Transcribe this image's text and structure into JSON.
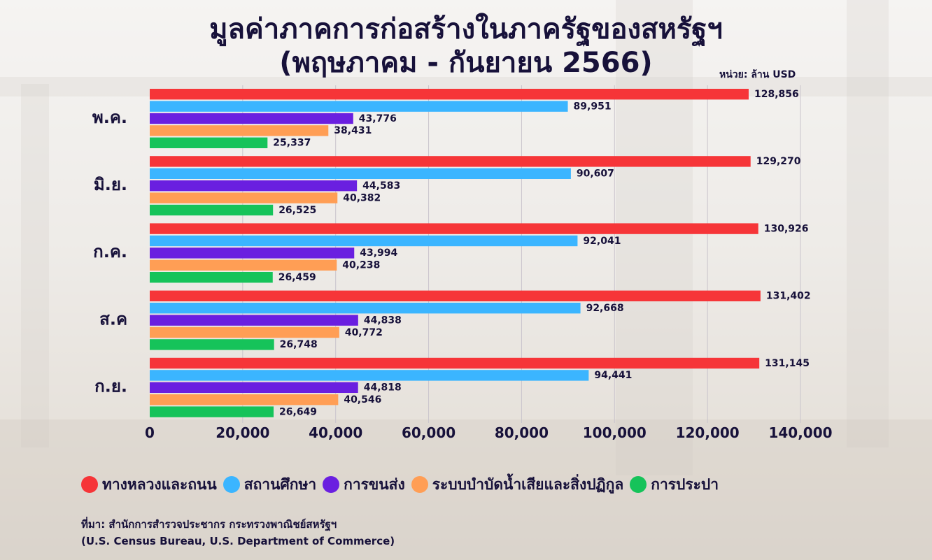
{
  "title_line1": "มูลค่าภาคการก่อสร้างในภาครัฐของสหรัฐฯ",
  "title_line2": "(พฤษภาคม - กันยายน 2566)",
  "unit_label": "หน่วย: ล้าน USD",
  "legend": [
    {
      "label": "ทางหลวงและถนน",
      "color": "#f63538"
    },
    {
      "label": "สถานศึกษา",
      "color": "#3bb5ff"
    },
    {
      "label": "การขนส่ง",
      "color": "#6a1fe0"
    },
    {
      "label": "ระบบบำบัดน้ำเสียและสิ่งปฏิกูล",
      "color": "#ff9e55"
    },
    {
      "label": "การประปา",
      "color": "#16c35a"
    }
  ],
  "source_line1": "ที่มา: สำนักการสำรวจประชากร กระทรวงพาณิชย์สหรัฐฯ",
  "source_line2": "(U.S. Census Bureau, U.S. Department of Commerce)",
  "chart_data": {
    "type": "bar",
    "orientation": "horizontal",
    "title": "มูลค่าภาคการก่อสร้างในภาครัฐของสหรัฐฯ (พฤษภาคม - กันยายน 2566)",
    "xlabel": "",
    "ylabel": "",
    "xlim": [
      0,
      140000
    ],
    "x_ticks": [
      0,
      20000,
      40000,
      60000,
      80000,
      100000,
      120000,
      140000
    ],
    "x_tick_labels": [
      "0",
      "20,000",
      "40,000",
      "60,000",
      "80,000",
      "100,000",
      "120,000",
      "140,000"
    ],
    "grid": "vertical",
    "legend_position": "bottom",
    "categories": [
      "พ.ค.",
      "มิ.ย.",
      "ก.ค.",
      "ส.ค",
      "ก.ย."
    ],
    "series": [
      {
        "name": "ทางหลวงและถนน",
        "color": "#f63538",
        "values": [
          128856,
          129270,
          130926,
          131402,
          131145
        ],
        "labels": [
          "128,856",
          "129,270",
          "130,926",
          "131,402",
          "131,145"
        ]
      },
      {
        "name": "สถานศึกษา",
        "color": "#3bb5ff",
        "values": [
          89951,
          90607,
          92041,
          92668,
          94441
        ],
        "labels": [
          "89,951",
          "90,607",
          "92,041",
          "92,668",
          "94,441"
        ]
      },
      {
        "name": "การขนส่ง",
        "color": "#6a1fe0",
        "values": [
          43776,
          44583,
          43994,
          44838,
          44818
        ],
        "labels": [
          "43,776",
          "44,583",
          "43,994",
          "44,838",
          "44,818"
        ]
      },
      {
        "name": "ระบบบำบัดน้ำเสียและสิ่งปฏิกูล",
        "color": "#ff9e55",
        "values": [
          38431,
          40382,
          40238,
          40772,
          40546
        ],
        "labels": [
          "38,431",
          "40,382",
          "40,238",
          "40,772",
          "40,546"
        ]
      },
      {
        "name": "การประปา",
        "color": "#16c35a",
        "values": [
          25337,
          26525,
          26459,
          26748,
          26649
        ],
        "labels": [
          "25,337",
          "26,525",
          "26,459",
          "26,748",
          "26,649"
        ]
      }
    ]
  }
}
